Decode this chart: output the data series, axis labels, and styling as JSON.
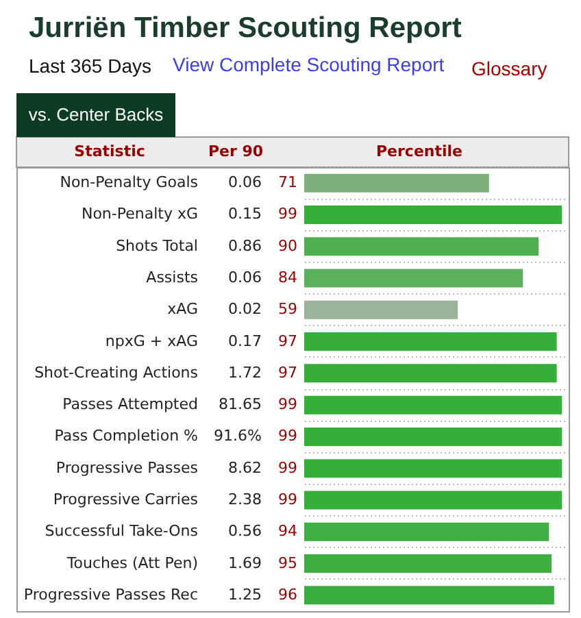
{
  "chart_data": {
    "type": "bar",
    "orientation": "horizontal",
    "title": "Jurriën Timber Scouting Report",
    "subtitle": "Last 365 Days",
    "ylabel": "Statistic",
    "xlabel": "Percentile",
    "categories": [
      "Non-Penalty Goals",
      "Non-Penalty xG",
      "Shots Total",
      "Assists",
      "xAG",
      "npxG + xAG",
      "Shot-Creating Actions",
      "Passes Attempted",
      "Pass Completion %",
      "Progressive Passes",
      "Progressive Carries",
      "Successful Take-Ons",
      "Touches (Att Pen)",
      "Progressive Passes Rec"
    ],
    "values": [
      71,
      99,
      90,
      84,
      59,
      97,
      97,
      99,
      99,
      99,
      99,
      94,
      95,
      96
    ],
    "colors": [
      "#7daf7b",
      "#34af38",
      "#4daf50",
      "#5bb05d",
      "#9ab39a",
      "#36ae39",
      "#36ae39",
      "#34af38",
      "#34af38",
      "#34af38",
      "#34af38",
      "#41ae43",
      "#3dae3f",
      "#3aae3c"
    ],
    "data_labels": true,
    "xlim": [
      0,
      100
    ],
    "grid": "y",
    "annotations": [
      "View Complete Scouting Report",
      "Glossary",
      "vs. Center Backs",
      "Per 90",
      "0.06",
      "0.15",
      "0.86",
      "0.06",
      "0.02",
      "0.17",
      "1.72",
      "81.65",
      "91.6%",
      "8.62",
      "2.38",
      "0.56",
      "1.69",
      "1.25"
    ]
  }
}
